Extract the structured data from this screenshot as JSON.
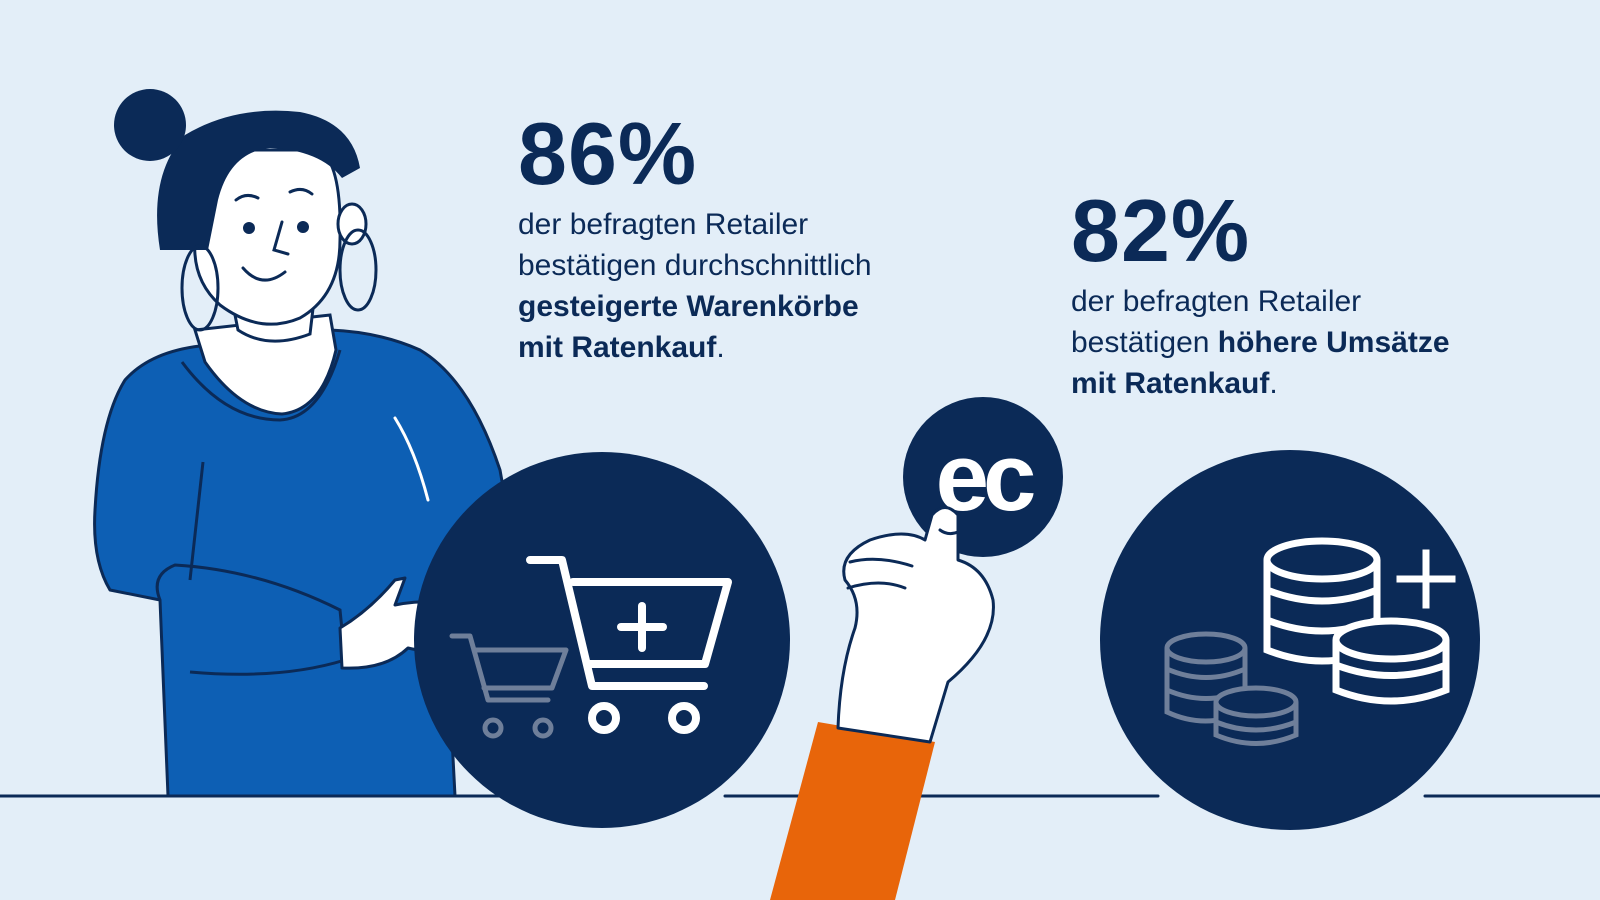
{
  "stats": [
    {
      "percent": "86%",
      "line1": "der befragten Retailer",
      "line2": "bestätigen durchschnittlich",
      "bold1": "gesteigerte Warenkörbe",
      "bold2": "mit Ratenkauf",
      "end": "."
    },
    {
      "percent": "82%",
      "line1": "der befragten Retailer",
      "line2_plain": "bestätigen ",
      "bold1": "höhere Umsätze",
      "bold2": "mit Ratenkauf",
      "end": "."
    }
  ],
  "card_label": "ec",
  "colors": {
    "background": "#e3eef8",
    "navy": "#0b2a57",
    "sweater": "#0d5fb4",
    "sleeve": "#e8650a",
    "muted_icon": "#6f7f9a"
  }
}
